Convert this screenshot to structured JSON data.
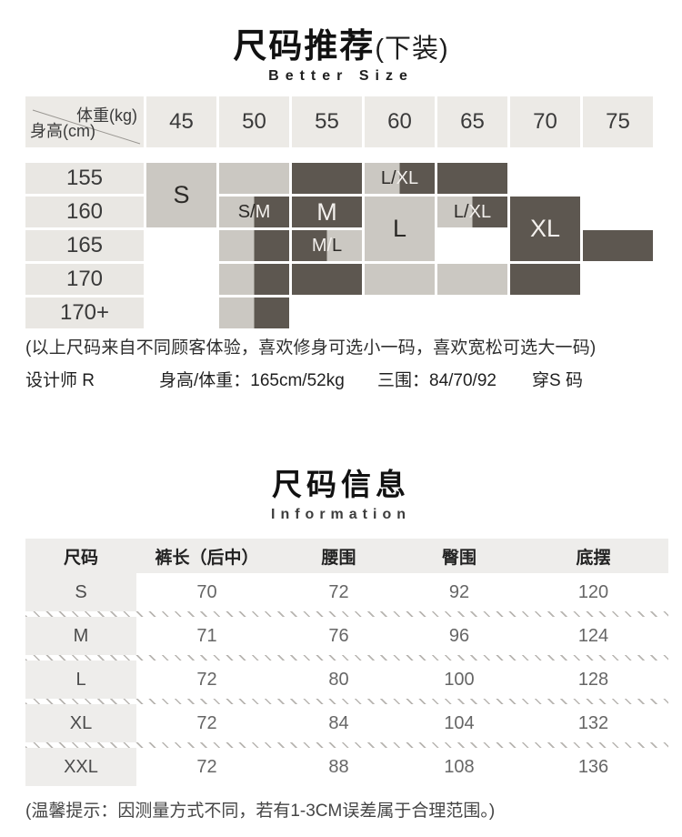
{
  "section1": {
    "title": "尺码推荐",
    "title_suffix": "(下装)",
    "subtitle": "Better Size"
  },
  "size_grid": {
    "corner_top": "体重(kg)",
    "corner_bottom": "身高(cm)",
    "weights": [
      "45",
      "50",
      "55",
      "60",
      "65",
      "70",
      "75"
    ],
    "heights": [
      "155",
      "160",
      "165",
      "170",
      "170+"
    ],
    "colors": {
      "dark": "#5d5750",
      "light": "#cbc8c2",
      "header": "#eceae6",
      "label": "#e9e7e3"
    },
    "cells": [
      {
        "r": 0,
        "c": 0,
        "span": 2,
        "fill": "light",
        "size": "lg",
        "parts": [
          {
            "text": "S",
            "tone": "dark"
          }
        ]
      },
      {
        "r": 0,
        "c": 1,
        "span": 1,
        "fill": "light",
        "parts": []
      },
      {
        "r": 0,
        "c": 2,
        "span": 1,
        "fill": "dark",
        "parts": []
      },
      {
        "r": 0,
        "c": 3,
        "span": 1,
        "fill": "split-ld",
        "size": "sm",
        "parts": [
          {
            "text": "L/",
            "tone": "dark"
          },
          {
            "text": "XL",
            "tone": "light"
          }
        ]
      },
      {
        "r": 0,
        "c": 4,
        "span": 1,
        "fill": "dark",
        "parts": []
      },
      {
        "r": 1,
        "c": 1,
        "span": 1,
        "fill": "split-ld",
        "size": "sm",
        "parts": [
          {
            "text": "S/",
            "tone": "dark"
          },
          {
            "text": "M",
            "tone": "light"
          }
        ]
      },
      {
        "r": 1,
        "c": 2,
        "span": 1,
        "fill": "dark",
        "size": "lg",
        "parts": [
          {
            "text": "M",
            "tone": "light"
          }
        ]
      },
      {
        "r": 1,
        "c": 3,
        "span": 2,
        "fill": "light",
        "size": "lg",
        "parts": [
          {
            "text": "L",
            "tone": "dark"
          }
        ]
      },
      {
        "r": 1,
        "c": 4,
        "span": 1,
        "fill": "split-ld",
        "size": "sm",
        "parts": [
          {
            "text": "L/",
            "tone": "dark"
          },
          {
            "text": "XL",
            "tone": "light"
          }
        ]
      },
      {
        "r": 1,
        "c": 5,
        "span": 2,
        "fill": "dark",
        "size": "lg",
        "parts": [
          {
            "text": "XL",
            "tone": "light"
          }
        ]
      },
      {
        "r": 2,
        "c": 1,
        "span": 1,
        "fill": "split-ld",
        "parts": []
      },
      {
        "r": 2,
        "c": 2,
        "span": 1,
        "fill": "split-dl",
        "size": "sm",
        "parts": [
          {
            "text": "M/",
            "tone": "light"
          },
          {
            "text": "L",
            "tone": "dark"
          }
        ]
      },
      {
        "r": 2,
        "c": 6,
        "span": 1,
        "fill": "dark",
        "parts": []
      },
      {
        "r": 3,
        "c": 1,
        "span": 1,
        "fill": "split-ld",
        "parts": []
      },
      {
        "r": 3,
        "c": 2,
        "span": 1,
        "fill": "dark",
        "parts": []
      },
      {
        "r": 3,
        "c": 3,
        "span": 1,
        "fill": "light",
        "parts": []
      },
      {
        "r": 3,
        "c": 4,
        "span": 1,
        "fill": "light",
        "parts": []
      },
      {
        "r": 3,
        "c": 5,
        "span": 1,
        "fill": "dark",
        "parts": []
      },
      {
        "r": 4,
        "c": 1,
        "span": 1,
        "fill": "split-ld",
        "parts": []
      }
    ],
    "note": "(以上尺码来自不同顾客体验，喜欢修身可选小一码，喜欢宽松可选大一码)"
  },
  "designer": {
    "label": "设计师 R",
    "body_stats": "身高/体重：165cm/52kg",
    "measurements": "三围：84/70/92",
    "size_worn": "穿S 码"
  },
  "section2": {
    "title": "尺码信息",
    "subtitle": "Information"
  },
  "info_table": {
    "columns": [
      "尺码",
      "裤长（后中）",
      "腰围",
      "臀围",
      "底摆"
    ],
    "rows": [
      {
        "size": "S",
        "values": [
          "70",
          "72",
          "92",
          "120"
        ]
      },
      {
        "size": "M",
        "values": [
          "71",
          "76",
          "96",
          "124"
        ]
      },
      {
        "size": "L",
        "values": [
          "72",
          "80",
          "100",
          "128"
        ]
      },
      {
        "size": "XL",
        "values": [
          "72",
          "84",
          "104",
          "132"
        ]
      },
      {
        "size": "XXL",
        "values": [
          "72",
          "88",
          "108",
          "136"
        ]
      }
    ],
    "note": "(温馨提示：因测量方式不同，若有1-3CM误差属于合理范围。)"
  }
}
